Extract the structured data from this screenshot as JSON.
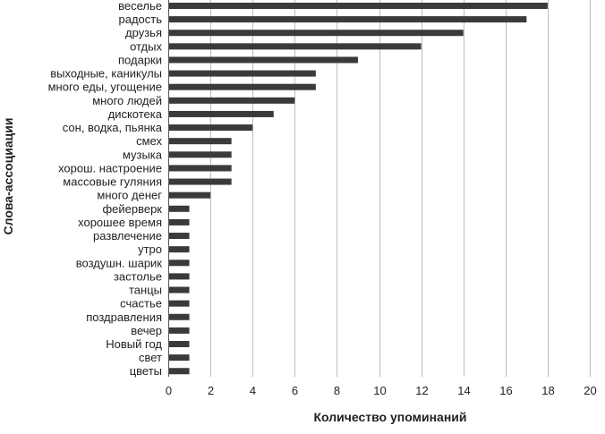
{
  "chart_data": {
    "type": "bar",
    "orientation": "horizontal",
    "title": "",
    "xlabel": "Количество упоминаний",
    "ylabel": "Слова-ассоциации",
    "xlim": [
      0,
      20
    ],
    "x_ticks": [
      0,
      2,
      4,
      6,
      8,
      10,
      12,
      14,
      16,
      18,
      20
    ],
    "grid": "vertical gridlines at every x tick",
    "legend": "none",
    "bar_color": "#3a3a3a",
    "categories": [
      "веселье",
      "радость",
      "друзья",
      "отдых",
      "подарки",
      "выходные, каникулы",
      "много еды, угощение",
      "много людей",
      "дискотека",
      "сон, водка, пьянка",
      "смех",
      "музыка",
      "хорош. настроение",
      "массовые гуляния",
      "много денег",
      "фейерверк",
      "хорошее время",
      "развлечение",
      "утро",
      "воздушн. шарик",
      "застолье",
      "танцы",
      "счастье",
      "поздравления",
      "вечер",
      "Новый год",
      "свет",
      "цветы"
    ],
    "values": [
      18,
      17,
      14,
      12,
      9,
      7,
      7,
      6,
      5,
      4,
      3,
      3,
      3,
      3,
      2,
      1,
      1,
      1,
      1,
      1,
      1,
      1,
      1,
      1,
      1,
      1,
      1,
      1
    ]
  }
}
